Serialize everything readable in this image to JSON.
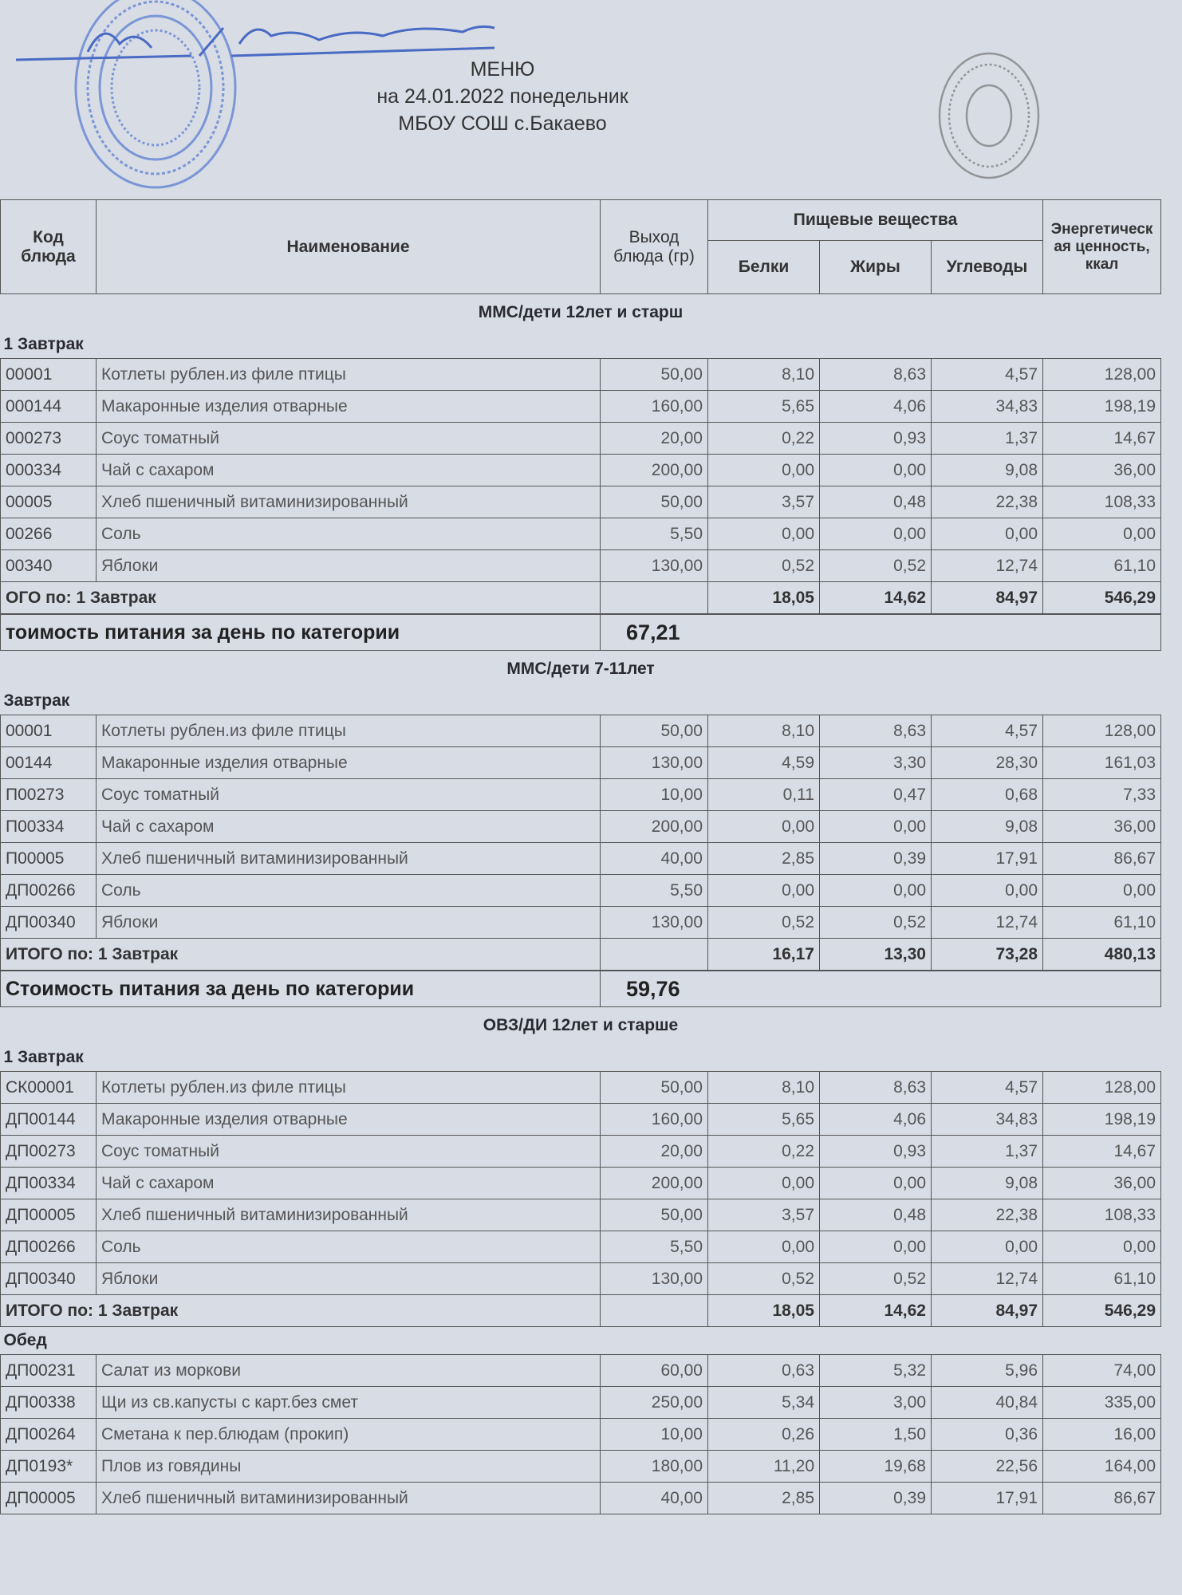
{
  "header": {
    "title": "МЕНЮ",
    "date_line": "на 24.01.2022  понедельник",
    "school": "МБОУ СОШ с.Бакаево"
  },
  "stamps": {
    "left_color": "#5b7fd1",
    "right_color": "#777777",
    "signature_color": "#4a6bc4",
    "signature_text": "Ак / ПСашмурзи"
  },
  "columns": {
    "code": "Код блюда",
    "name": "Наименование",
    "yield": "Выход блюда (гр)",
    "nutrients": "Пищевые вещества",
    "protein": "Белки",
    "fat": "Жиры",
    "carbs": "Углеводы",
    "energy": "Энергетическая ценность, ккал"
  },
  "sections": [
    {
      "title": "ММС/дети 12лет и старш",
      "meals": [
        {
          "label": "1 Завтрак",
          "rows": [
            [
              "00001",
              "Котлеты рублен.из филе птицы",
              "50,00",
              "8,10",
              "8,63",
              "4,57",
              "128,00"
            ],
            [
              "000144",
              "Макаронные изделия отварные",
              "160,00",
              "5,65",
              "4,06",
              "34,83",
              "198,19"
            ],
            [
              "000273",
              "Соус томатный",
              "20,00",
              "0,22",
              "0,93",
              "1,37",
              "14,67"
            ],
            [
              "000334",
              "Чай с сахаром",
              "200,00",
              "0,00",
              "0,00",
              "9,08",
              "36,00"
            ],
            [
              "00005",
              "Хлеб пшеничный витаминизированный",
              "50,00",
              "3,57",
              "0,48",
              "22,38",
              "108,33"
            ],
            [
              "00266",
              "Соль",
              "5,50",
              "0,00",
              "0,00",
              "0,00",
              "0,00"
            ],
            [
              "00340",
              "Яблоки",
              "130,00",
              "0,52",
              "0,52",
              "12,74",
              "61,10"
            ]
          ],
          "total": {
            "label": "ОГО по: 1 Завтрак",
            "values": [
              "18,05",
              "14,62",
              "84,97",
              "546,29"
            ]
          }
        }
      ],
      "cost": {
        "label": "тоимость питания за день по категории",
        "value": "67,21"
      }
    },
    {
      "title": "ММС/дети 7-11лет",
      "meals": [
        {
          "label": "Завтрак",
          "rows": [
            [
              "00001",
              "Котлеты рублен.из филе птицы",
              "50,00",
              "8,10",
              "8,63",
              "4,57",
              "128,00"
            ],
            [
              "00144",
              "Макаронные изделия отварные",
              "130,00",
              "4,59",
              "3,30",
              "28,30",
              "161,03"
            ],
            [
              "П00273",
              "Соус томатный",
              "10,00",
              "0,11",
              "0,47",
              "0,68",
              "7,33"
            ],
            [
              "П00334",
              "Чай с сахаром",
              "200,00",
              "0,00",
              "0,00",
              "9,08",
              "36,00"
            ],
            [
              "П00005",
              "Хлеб пшеничный витаминизированный",
              "40,00",
              "2,85",
              "0,39",
              "17,91",
              "86,67"
            ],
            [
              "ДП00266",
              "Соль",
              "5,50",
              "0,00",
              "0,00",
              "0,00",
              "0,00"
            ],
            [
              "ДП00340",
              "Яблоки",
              "130,00",
              "0,52",
              "0,52",
              "12,74",
              "61,10"
            ]
          ],
          "total": {
            "label": "ИТОГО по: 1 Завтрак",
            "values": [
              "16,17",
              "13,30",
              "73,28",
              "480,13"
            ]
          }
        }
      ],
      "cost": {
        "label": "Стоимость питания за день по категории",
        "value": "59,76"
      }
    },
    {
      "title": "ОВЗ/ДИ 12лет и старше",
      "meals": [
        {
          "label": "1 Завтрак",
          "rows": [
            [
              "СК00001",
              "Котлеты рублен.из филе птицы",
              "50,00",
              "8,10",
              "8,63",
              "4,57",
              "128,00"
            ],
            [
              "ДП00144",
              "Макаронные изделия отварные",
              "160,00",
              "5,65",
              "4,06",
              "34,83",
              "198,19"
            ],
            [
              "ДП00273",
              "Соус томатный",
              "20,00",
              "0,22",
              "0,93",
              "1,37",
              "14,67"
            ],
            [
              "ДП00334",
              "Чай с сахаром",
              "200,00",
              "0,00",
              "0,00",
              "9,08",
              "36,00"
            ],
            [
              "ДП00005",
              "Хлеб пшеничный витаминизированный",
              "50,00",
              "3,57",
              "0,48",
              "22,38",
              "108,33"
            ],
            [
              "ДП00266",
              "Соль",
              "5,50",
              "0,00",
              "0,00",
              "0,00",
              "0,00"
            ],
            [
              "ДП00340",
              "Яблоки",
              "130,00",
              "0,52",
              "0,52",
              "12,74",
              "61,10"
            ]
          ],
          "total": {
            "label": "ИТОГО по: 1 Завтрак",
            "values": [
              "18,05",
              "14,62",
              "84,97",
              "546,29"
            ]
          }
        },
        {
          "label": "Обед",
          "rows": [
            [
              "ДП00231",
              "Салат из моркови",
              "60,00",
              "0,63",
              "5,32",
              "5,96",
              "74,00"
            ],
            [
              "ДП00338",
              "Щи из св.капусты с карт.без смет",
              "250,00",
              "5,34",
              "3,00",
              "40,84",
              "335,00"
            ],
            [
              "ДП00264",
              "Сметана к пер.блюдам (прокип)",
              "10,00",
              "0,26",
              "1,50",
              "0,36",
              "16,00"
            ],
            [
              "ДП0193*",
              "Плов из говядины",
              "180,00",
              "11,20",
              "19,68",
              "22,56",
              "164,00"
            ],
            [
              "ДП00005",
              "Хлеб пшеничный витаминизированный",
              "40,00",
              "2,85",
              "0,39",
              "17,91",
              "86,67"
            ]
          ]
        }
      ]
    }
  ]
}
